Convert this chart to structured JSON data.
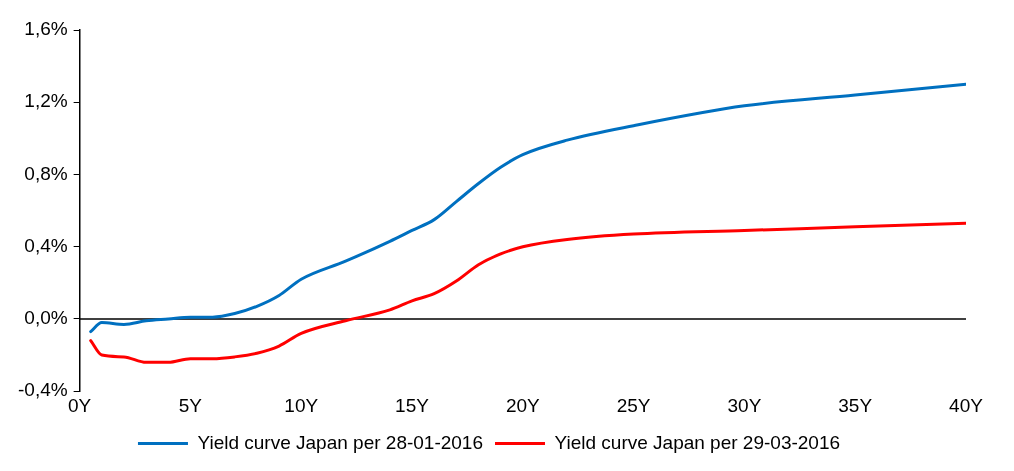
{
  "chart_data": {
    "type": "line",
    "x": [
      0.5,
      1,
      2,
      3,
      4,
      5,
      6,
      7,
      8,
      9,
      10,
      12,
      14,
      15,
      16,
      17,
      18,
      19,
      20,
      22,
      25,
      30,
      35,
      40
    ],
    "series": [
      {
        "name": "Yield curve Japan per 28-01-2016",
        "color": "#0070c0",
        "values": [
          -0.07,
          -0.02,
          -0.03,
          -0.01,
          0,
          0.01,
          0.01,
          0.03,
          0.07,
          0.13,
          0.22,
          0.32,
          0.43,
          0.49,
          0.55,
          0.65,
          0.75,
          0.84,
          0.91,
          0.99,
          1.07,
          1.18,
          1.24,
          1.3
        ]
      },
      {
        "name": "Yield curve Japan per 29-03-2016",
        "color": "#ff0000",
        "values": [
          -0.12,
          -0.2,
          -0.21,
          -0.24,
          -0.24,
          -0.22,
          -0.22,
          -0.21,
          -0.19,
          -0.15,
          -0.08,
          -0.01,
          0.05,
          0.1,
          0.14,
          0.21,
          0.3,
          0.36,
          0.4,
          0.44,
          0.47,
          0.49,
          0.51,
          0.53
        ]
      }
    ],
    "xlim": [
      0,
      40
    ],
    "xticks": [
      {
        "value": 0,
        "label": "0Y"
      },
      {
        "value": 5,
        "label": "5Y"
      },
      {
        "value": 10,
        "label": "10Y"
      },
      {
        "value": 15,
        "label": "15Y"
      },
      {
        "value": 20,
        "label": "20Y"
      },
      {
        "value": 25,
        "label": "25Y"
      },
      {
        "value": 30,
        "label": "30Y"
      },
      {
        "value": 35,
        "label": "35Y"
      },
      {
        "value": 40,
        "label": "40Y"
      }
    ],
    "ylim": [
      -0.4,
      1.6
    ],
    "yticks": [
      {
        "value": -0.4,
        "label": "-0,4%"
      },
      {
        "value": 0,
        "label": "0,0%"
      },
      {
        "value": 0.4,
        "label": "0,4%"
      },
      {
        "value": 0.8,
        "label": "0,8%"
      },
      {
        "value": 1.2,
        "label": "1,2%"
      },
      {
        "value": 1.6,
        "label": "1,6%"
      }
    ],
    "ref_lines": [
      {
        "axis": "y",
        "value": 0,
        "color": "#000000"
      }
    ],
    "grid": false,
    "legend": "bottom",
    "marker": "none",
    "line_style": "solid"
  }
}
